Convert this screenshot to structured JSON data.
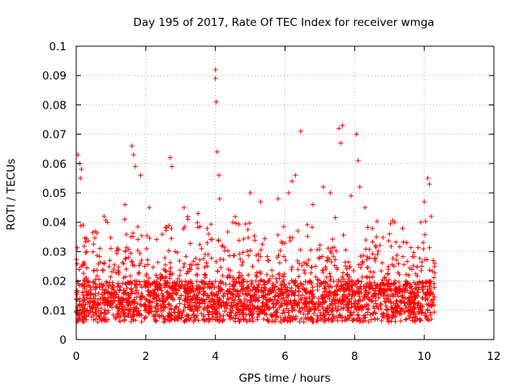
{
  "chart_data": {
    "type": "scatter",
    "title": "Day 195 of 2017, Rate Of TEC Index for receiver wmga",
    "xlabel": "GPS time / hours",
    "ylabel": "ROTI / TECUs",
    "xlim": [
      0,
      12
    ],
    "ylim": [
      0,
      0.1
    ],
    "grid": true,
    "marker": "+",
    "colors": {
      "points": "#ff0000",
      "grid": "#a0a0a0",
      "axis": "#000000"
    },
    "x_ticks": [
      "0",
      "2",
      "4",
      "6",
      "8",
      "10",
      "12"
    ],
    "y_ticks": [
      "0",
      "0.01",
      "0.02",
      "0.03",
      "0.04",
      "0.05",
      "0.06",
      "0.07",
      "0.08",
      "0.09",
      "0.1"
    ],
    "data_range_hours": [
      0,
      10.3
    ],
    "typical_band": [
      0.006,
      0.02
    ],
    "series": [
      {
        "name": "ROTI",
        "points": [
          [
            0.05,
            0.063
          ],
          [
            0.1,
            0.06
          ],
          [
            0.12,
            0.055
          ],
          [
            0.15,
            0.058
          ],
          [
            0.2,
            0.039
          ],
          [
            0.3,
            0.03
          ],
          [
            0.8,
            0.042
          ],
          [
            1.4,
            0.046
          ],
          [
            1.6,
            0.066
          ],
          [
            1.65,
            0.063
          ],
          [
            1.7,
            0.059
          ],
          [
            1.85,
            0.056
          ],
          [
            2.1,
            0.045
          ],
          [
            2.7,
            0.062
          ],
          [
            2.75,
            0.059
          ],
          [
            3.1,
            0.045
          ],
          [
            3.5,
            0.043
          ],
          [
            4.0,
            0.092
          ],
          [
            4.0,
            0.089
          ],
          [
            4.02,
            0.081
          ],
          [
            4.05,
            0.064
          ],
          [
            4.1,
            0.056
          ],
          [
            4.12,
            0.048
          ],
          [
            4.5,
            0.04
          ],
          [
            5.0,
            0.05
          ],
          [
            5.3,
            0.047
          ],
          [
            5.8,
            0.048
          ],
          [
            6.1,
            0.05
          ],
          [
            6.2,
            0.054
          ],
          [
            6.3,
            0.056
          ],
          [
            6.45,
            0.071
          ],
          [
            6.8,
            0.046
          ],
          [
            7.1,
            0.052
          ],
          [
            7.3,
            0.05
          ],
          [
            7.55,
            0.072
          ],
          [
            7.6,
            0.067
          ],
          [
            7.65,
            0.073
          ],
          [
            7.9,
            0.049
          ],
          [
            8.05,
            0.07
          ],
          [
            8.1,
            0.061
          ],
          [
            8.15,
            0.052
          ],
          [
            8.3,
            0.045
          ],
          [
            8.6,
            0.032
          ],
          [
            9.0,
            0.036
          ],
          [
            9.15,
            0.04
          ],
          [
            9.5,
            0.033
          ],
          [
            9.9,
            0.04
          ],
          [
            10.0,
            0.047
          ],
          [
            10.1,
            0.055
          ],
          [
            10.15,
            0.053
          ],
          [
            10.2,
            0.042
          ],
          [
            10.3,
            0.026
          ]
        ]
      }
    ]
  }
}
